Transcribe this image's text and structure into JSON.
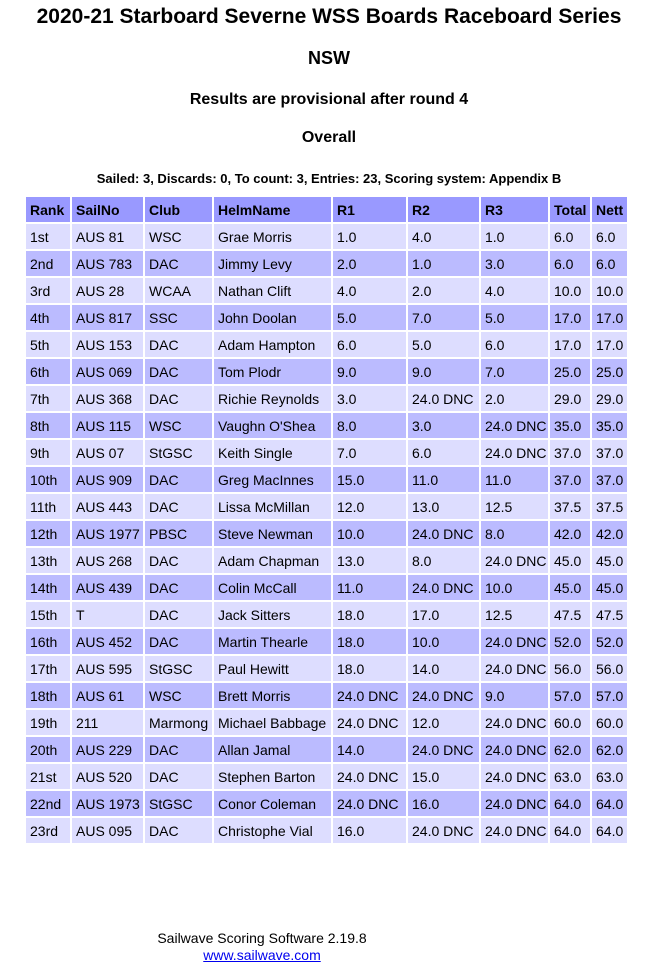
{
  "title": "2020-21 Starboard Severne WSS Boards Raceboard Series",
  "subtitle": "NSW",
  "provisional": "Results are provisional after round 4",
  "section": "Overall",
  "summary": "Sailed: 3, Discards: 0, To count: 3, Entries: 23, Scoring system: Appendix B",
  "table": {
    "headers": [
      "Rank",
      "SailNo",
      "Club",
      "HelmName",
      "R1",
      "R2",
      "R3",
      "Total",
      "Nett"
    ],
    "rows": [
      [
        "1st",
        "AUS 81",
        "WSC",
        "Grae Morris",
        "1.0",
        "4.0",
        "1.0",
        "6.0",
        "6.0"
      ],
      [
        "2nd",
        "AUS 783",
        "DAC",
        "Jimmy Levy",
        "2.0",
        "1.0",
        "3.0",
        "6.0",
        "6.0"
      ],
      [
        "3rd",
        "AUS 28",
        "WCAA",
        "Nathan Clift",
        "4.0",
        "2.0",
        "4.0",
        "10.0",
        "10.0"
      ],
      [
        "4th",
        "AUS 817",
        "SSC",
        "John Doolan",
        "5.0",
        "7.0",
        "5.0",
        "17.0",
        "17.0"
      ],
      [
        "5th",
        "AUS 153",
        "DAC",
        "Adam Hampton",
        "6.0",
        "5.0",
        "6.0",
        "17.0",
        "17.0"
      ],
      [
        "6th",
        "AUS 069",
        "DAC",
        "Tom Plodr",
        "9.0",
        "9.0",
        "7.0",
        "25.0",
        "25.0"
      ],
      [
        "7th",
        "AUS 368",
        "DAC",
        "Richie Reynolds",
        "3.0",
        "24.0 DNC",
        "2.0",
        "29.0",
        "29.0"
      ],
      [
        "8th",
        "AUS 115",
        "WSC",
        "Vaughn O'Shea",
        "8.0",
        "3.0",
        "24.0 DNC",
        "35.0",
        "35.0"
      ],
      [
        "9th",
        "AUS 07",
        "StGSC",
        "Keith Single",
        "7.0",
        "6.0",
        "24.0 DNC",
        "37.0",
        "37.0"
      ],
      [
        "10th",
        "AUS 909",
        "DAC",
        "Greg MacInnes",
        "15.0",
        "11.0",
        "11.0",
        "37.0",
        "37.0"
      ],
      [
        "11th",
        "AUS 443",
        "DAC",
        "Lissa McMillan",
        "12.0",
        "13.0",
        "12.5",
        "37.5",
        "37.5"
      ],
      [
        "12th",
        "AUS 1977",
        "PBSC",
        "Steve Newman",
        "10.0",
        "24.0 DNC",
        "8.0",
        "42.0",
        "42.0"
      ],
      [
        "13th",
        "AUS 268",
        "DAC",
        "Adam Chapman",
        "13.0",
        "8.0",
        "24.0 DNC",
        "45.0",
        "45.0"
      ],
      [
        "14th",
        "AUS 439",
        "DAC",
        "Colin McCall",
        "11.0",
        "24.0 DNC",
        "10.0",
        "45.0",
        "45.0"
      ],
      [
        "15th",
        "T",
        "DAC",
        "Jack Sitters",
        "18.0",
        "17.0",
        "12.5",
        "47.5",
        "47.5"
      ],
      [
        "16th",
        "AUS 452",
        "DAC",
        "Martin Thearle",
        "18.0",
        "10.0",
        "24.0 DNC",
        "52.0",
        "52.0"
      ],
      [
        "17th",
        "AUS 595",
        "StGSC",
        "Paul Hewitt",
        "18.0",
        "14.0",
        "24.0 DNC",
        "56.0",
        "56.0"
      ],
      [
        "18th",
        "AUS 61",
        "WSC",
        "Brett Morris",
        "24.0 DNC",
        "24.0 DNC",
        "9.0",
        "57.0",
        "57.0"
      ],
      [
        "19th",
        "211",
        "Marmong",
        "Michael Babbage",
        "24.0 DNC",
        "12.0",
        "24.0 DNC",
        "60.0",
        "60.0"
      ],
      [
        "20th",
        "AUS 229",
        "DAC",
        "Allan Jamal",
        "14.0",
        "24.0 DNC",
        "24.0 DNC",
        "62.0",
        "62.0"
      ],
      [
        "21st",
        "AUS 520",
        "DAC",
        "Stephen Barton",
        "24.0 DNC",
        "15.0",
        "24.0 DNC",
        "63.0",
        "63.0"
      ],
      [
        "22nd",
        "AUS 1973",
        "StGSC",
        "Conor Coleman",
        "24.0 DNC",
        "16.0",
        "24.0 DNC",
        "64.0",
        "64.0"
      ],
      [
        "23rd",
        "AUS 095",
        "DAC",
        "Christophe Vial",
        "16.0",
        "24.0 DNC",
        "24.0 DNC",
        "64.0",
        "64.0"
      ]
    ]
  },
  "footer": {
    "software": "Sailwave Scoring Software 2.19.8",
    "link_text": "www.sailwave.com"
  },
  "colors": {
    "header_bg": "#9999ff",
    "row_odd_bg": "#ddddff",
    "row_even_bg": "#bbbbff",
    "link": "#0000ee"
  }
}
